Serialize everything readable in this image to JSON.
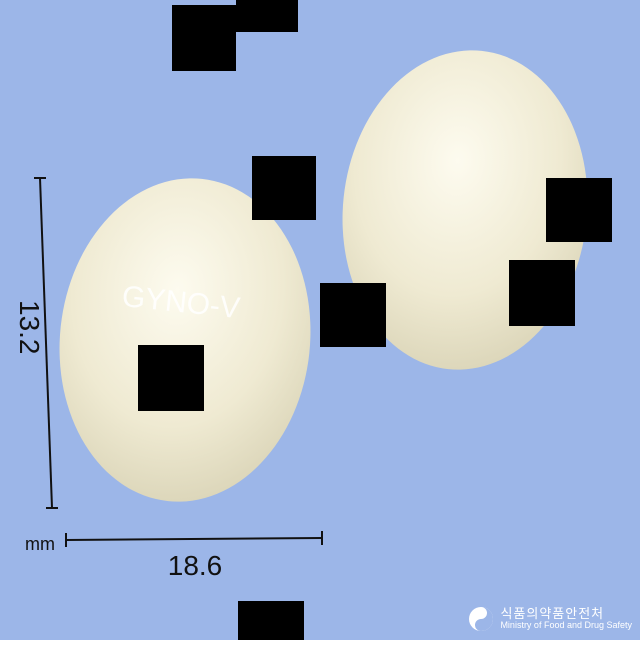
{
  "background_color": "#9cb6e8",
  "tablet_color": "#f0ecd8",
  "imprint": "GYNO-V",
  "dimension_height": "13.2",
  "dimension_width": "18.6",
  "unit": "mm",
  "logo": {
    "icon": "korea-taeguk-icon",
    "korean": "식품의약품안전처",
    "english": "Ministry of Food and Drug Safety"
  }
}
